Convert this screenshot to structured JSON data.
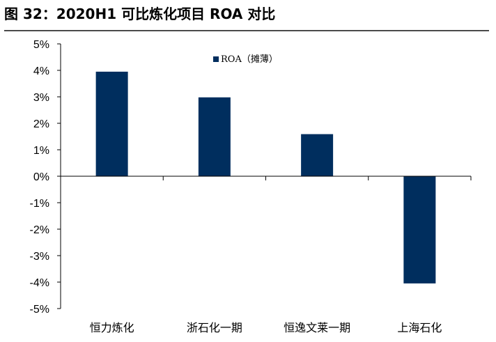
{
  "header": {
    "title": "图 32：2020H1 可比炼化项目 ROA 对比"
  },
  "chart_data": {
    "type": "bar",
    "categories": [
      "恒力炼化",
      "浙石化一期",
      "恒逸文莱一期",
      "上海石化"
    ],
    "series": [
      {
        "name": "ROA（摊薄）",
        "values": [
          3.95,
          2.98,
          1.59,
          -4.05
        ],
        "color": "#002E5E"
      }
    ],
    "ylim": [
      -5,
      5
    ],
    "yticks": [
      5,
      4,
      3,
      2,
      1,
      0,
      -1,
      -2,
      -3,
      -4,
      -5
    ],
    "ytick_suffix": "%",
    "grid": false,
    "legend_position": "top-center"
  }
}
